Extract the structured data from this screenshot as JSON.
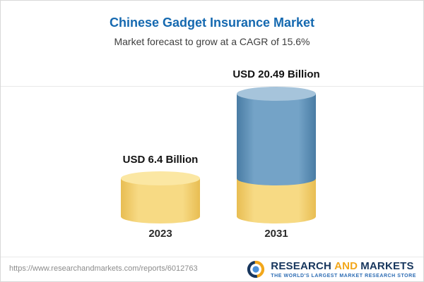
{
  "header": {
    "title": "Chinese Gadget Insurance Market",
    "subtitle": "Market forecast to grow at a CAGR of 15.6%"
  },
  "chart_data": {
    "type": "bar",
    "style": "3d-cylinder",
    "title": "Chinese Gadget Insurance Market",
    "subtitle": "Market forecast to grow at a CAGR of 15.6%",
    "unit": "USD Billion",
    "cagr": "15.6%",
    "categories": [
      "2023",
      "2031"
    ],
    "values": [
      6.4,
      20.49
    ],
    "value_labels": [
      "USD 6.4 Billion",
      "USD 20.49 Billion"
    ],
    "bars": [
      {
        "category": "2023",
        "value": 6.4,
        "value_label": "USD 6.4 Billion",
        "segments": [
          {
            "value": 6.4,
            "color_key": "gold"
          }
        ]
      },
      {
        "category": "2031",
        "value": 20.49,
        "value_label": "USD 20.49 Billion",
        "segments": [
          {
            "value": 6.4,
            "color_key": "gold"
          },
          {
            "value": 14.09,
            "color_key": "blue"
          }
        ]
      }
    ],
    "colors": {
      "gold": {
        "body": [
          "#e8bd52",
          "#f7da84"
        ],
        "top": "#fbe7a3"
      },
      "blue": {
        "body": [
          "#497ca4",
          "#74a3c7"
        ],
        "top": "#a6c4db"
      }
    },
    "axis": {
      "x_ticks": [
        "2023",
        "2031"
      ],
      "y_axis_visible": false,
      "grid": false
    }
  },
  "footer": {
    "url": "https://www.researchandmarkets.com/reports/6012763",
    "logo": {
      "research": "RESEARCH",
      "and": "AND",
      "markets": "MARKETS",
      "tagline": "THE WORLD'S LARGEST MARKET RESEARCH STORE"
    }
  }
}
